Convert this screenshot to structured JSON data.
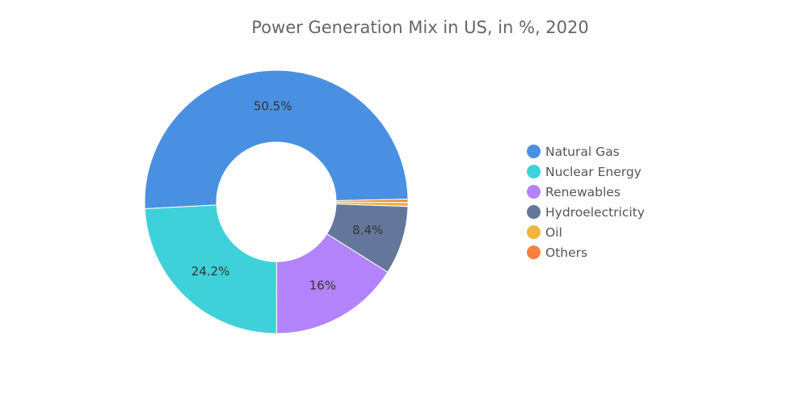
{
  "chart_data": {
    "type": "pie",
    "variant": "donut",
    "title": "Power Generation Mix in US, in %, 2020",
    "categories": [
      "Natural Gas",
      "Nuclear Energy",
      "Renewables",
      "Hydroelectricity",
      "Oil",
      "Others"
    ],
    "values": [
      50.5,
      24.2,
      16,
      8.4,
      0.5,
      0.4
    ],
    "data_labels": [
      "50.5%",
      "24.2%",
      "16%",
      "8.4%",
      "",
      ""
    ],
    "colors": [
      "#4a90e2",
      "#3fd1d9",
      "#b383fb",
      "#64779b",
      "#f0b43f",
      "#f5823f"
    ],
    "draw_order_clockwise": [
      "Natural Gas",
      "Others",
      "Oil",
      "Hydroelectricity",
      "Renewables",
      "Nuclear Energy"
    ],
    "legend_position": "right"
  }
}
